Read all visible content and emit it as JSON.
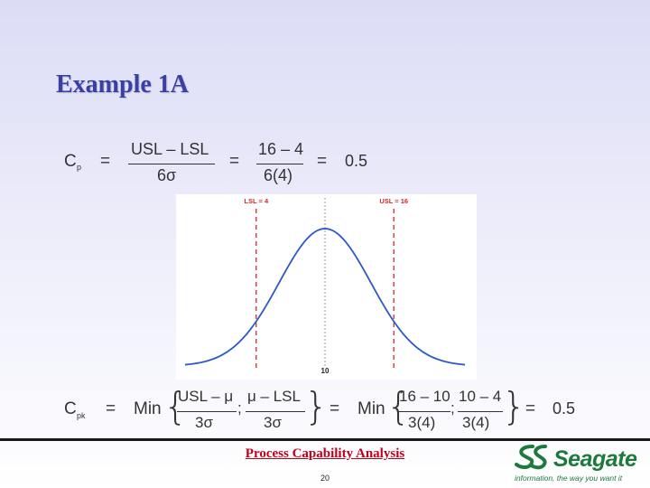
{
  "slide": {
    "title": "Example 1A",
    "footer_title": "Process Capability Analysis",
    "page_number": "20"
  },
  "cp_formula": {
    "lhs": "C",
    "lhs_sub": "p",
    "eq": "=",
    "num1": "USL – LSL",
    "den1": "6σ",
    "num2": "16 – 4",
    "den2": "6(4)",
    "result": "0.5"
  },
  "cpk_formula": {
    "lhs": "C",
    "lhs_sub": "pk",
    "eq": "=",
    "min": "Min",
    "num_a": "USL – μ",
    "den_a": "3σ",
    "num_b": "μ – LSL",
    "den_b": "3σ",
    "sep": ";",
    "num_c": "16 – 10",
    "den_c": "3(4)",
    "num_d": "10 – 4",
    "den_d": "3(4)",
    "result": "0.5"
  },
  "plot": {
    "lsl_label": "LSL = 4",
    "usl_label": "USL = 16",
    "mean_label": "10",
    "mean": 10,
    "sigma": 4,
    "lsl": 4,
    "usl": 16,
    "spec_color": "#d62828",
    "curve_color": "#2f58c7"
  },
  "logo": {
    "brand": "Seagate",
    "tagline": "information, the way you want it",
    "color": "#1d7a3d"
  }
}
